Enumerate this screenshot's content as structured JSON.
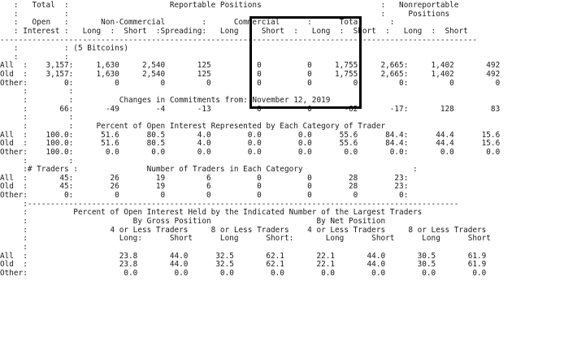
{
  "report": {
    "lines": [
      "   :   Total  :                      Reportable Positions                          :   Nonreportable",
      "   :          :                                                                    :     Positions",
      "   :   Open   :       Non-Commercial        :      Commercial      :      Total      :",
      "   : Interest :   Long  :  Short  :Spreading:   Long  :  Short  :   Long  :  Short  :   Long  :  Short",
      "--------------------------------------------------------------------------------------------------------",
      "   :          : (5 Bitcoins)",
      "   :          :",
      "All  :    3,157:     1,630     2,540       125          0          0     1,755     2,665:     1,402       492",
      "Old  :    3,157:     1,630     2,540       125          0          0     1,755     2,665:     1,402       492",
      "Other:        0:         0         0         0          0          0         0         0:         0         0",
      "     :         :",
      "     :         :          Changes in Commitments from: November 12, 2019",
      "     :       66:       -49        -4       -13          0          0       -62       -17:       128        83",
      "     :         :",
      "     :         :     Percent of Open Interest Represented by Each Category of Trader",
      "All  :    100.0:      51.6      80.5       4.0        0.0        0.0      55.6      84.4:      44.4      15.6",
      "Old  :    100.0:      51.6      80.5       4.0        0.0        0.0      55.6      84.4:      44.4      15.6",
      "Other:    100.0:       0.0       0.0       0.0        0.0        0.0       0.0       0.0:       0.0       0.0",
      "     :         :",
      "     :# Traders :               Number of Traders in Each Category                        :",
      "All  :       45:        26        19         6          0          0        28        23:",
      "Old  :       45:        26        19         6          0          0        28        23:",
      "Other:        0:         0         0         0          0          0         0         0:",
      "     :----------------------------------------------------------------------------------------------",
      "     :          Percent of Open Interest Held by the Indicated Number of the Largest Traders",
      "     :                       By Gross Position                       By Net Position",
      "     :                  4 or Less Traders     8 or Less Traders    4 or Less Traders     8 or Less Traders",
      "     :                    Long:      Short      Long      Short:       Long      Short      Long      Short",
      "     :",
      "All  :                    23.8       44.0      32.5       62.1       22.1       44.0       30.5       61.9",
      "Old  :                    23.8       44.0      32.5       62.1       22.1       44.0       30.5       61.9",
      "Other:                     0.0        0.0       0.0        0.0        0.0        0.0        0.0        0.0"
    ]
  },
  "highlight": {
    "label": "Commercial column highlight",
    "color": "#000000"
  }
}
